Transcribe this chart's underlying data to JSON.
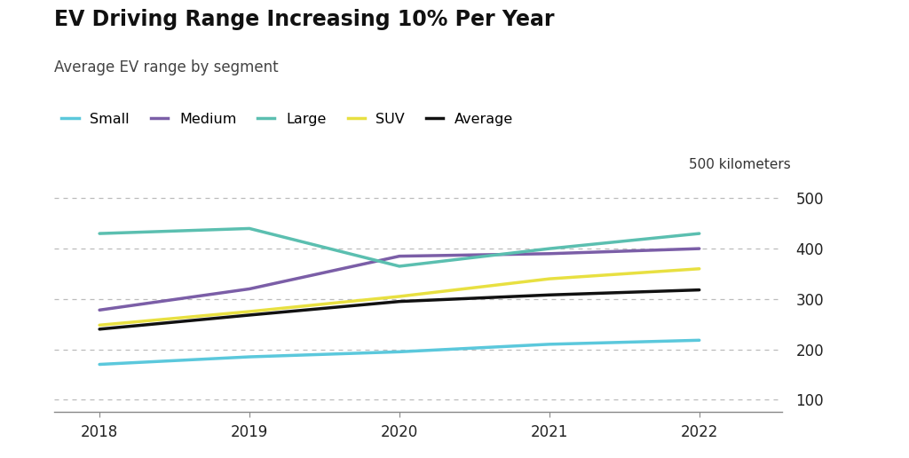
{
  "title": "EV Driving Range Increasing 10% Per Year",
  "subtitle": "Average EV range by segment",
  "ylabel_annotation": "500 kilometers",
  "years": [
    2018,
    2019,
    2020,
    2021,
    2022
  ],
  "series": {
    "Small": [
      170,
      185,
      195,
      210,
      218
    ],
    "Medium": [
      278,
      320,
      385,
      390,
      400
    ],
    "Large": [
      430,
      440,
      365,
      400,
      430
    ],
    "SUV": [
      248,
      275,
      305,
      340,
      360
    ],
    "Average": [
      240,
      268,
      295,
      308,
      318
    ]
  },
  "colors": {
    "Small": "#5BC8DC",
    "Medium": "#7B5EA7",
    "Large": "#5BBFB0",
    "SUV": "#E8E041",
    "Average": "#111111"
  },
  "ylim": [
    75,
    530
  ],
  "yticks": [
    100,
    200,
    300,
    400,
    500
  ],
  "background_color": "#FFFFFF",
  "grid_color": "#BBBBBB",
  "title_fontsize": 17,
  "subtitle_fontsize": 12,
  "legend_fontsize": 11.5,
  "tick_fontsize": 12,
  "linewidth": 2.5
}
